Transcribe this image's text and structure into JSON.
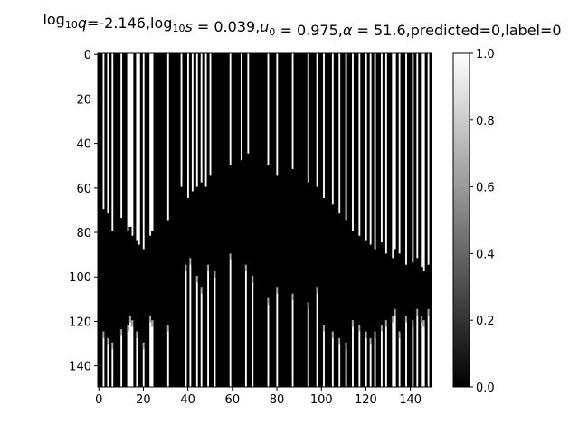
{
  "chart_data": {
    "type": "heatmap",
    "title": {
      "parts": [
        {
          "t": "log"
        },
        {
          "t": "10",
          "sub": true
        },
        {
          "t": "q",
          "italic": true
        },
        {
          "t": "=-2.146,log"
        },
        {
          "t": "10",
          "sub": true
        },
        {
          "t": "s",
          "italic": true
        },
        {
          "t": " = 0.039,"
        },
        {
          "t": "u",
          "italic": true
        },
        {
          "t": "0",
          "sub": true
        },
        {
          "t": " = 0.975,"
        },
        {
          "t": "α",
          "italic": true
        },
        {
          "t": " = 51.6,predicted=0,label=0"
        }
      ]
    },
    "colormap": "gray",
    "value_range": [
      0.0,
      1.0
    ],
    "grid": false,
    "x_axis": {
      "range": [
        0,
        150
      ],
      "ticks": [
        "0",
        "20",
        "40",
        "60",
        "80",
        "100",
        "120",
        "140"
      ]
    },
    "y_axis": {
      "range": [
        0,
        150
      ],
      "inverted": true,
      "ticks": [
        "0",
        "20",
        "40",
        "60",
        "80",
        "100",
        "120",
        "140"
      ]
    },
    "colorbar": {
      "ticks": [
        "0.0",
        "0.2",
        "0.4",
        "0.6",
        "0.8",
        "1.0"
      ]
    },
    "columns": 150,
    "rows": 150,
    "description_of_values": "binary-like 0/1 image: dark band spanning rows ~60-120 across all columns, irregular vertical white streaks above and below",
    "column_profile": {
      "top_dark_start_row": [
        0,
        0,
        70,
        0,
        72,
        0,
        80,
        0,
        0,
        0,
        74,
        0,
        0,
        80,
        78,
        82,
        0,
        84,
        86,
        0,
        88,
        0,
        0,
        82,
        80,
        0,
        0,
        0,
        0,
        0,
        0,
        75,
        0,
        0,
        0,
        0,
        0,
        60,
        0,
        0,
        65,
        0,
        62,
        0,
        60,
        0,
        58,
        0,
        60,
        0,
        55,
        0,
        0,
        0,
        0,
        0,
        0,
        0,
        0,
        50,
        0,
        0,
        0,
        0,
        48,
        0,
        0,
        45,
        0,
        0,
        0,
        0,
        0,
        0,
        0,
        0,
        50,
        0,
        0,
        0,
        55,
        0,
        0,
        0,
        0,
        0,
        0,
        52,
        0,
        0,
        0,
        0,
        0,
        0,
        58,
        0,
        0,
        0,
        60,
        0,
        0,
        65,
        0,
        0,
        0,
        68,
        0,
        0,
        72,
        0,
        0,
        75,
        0,
        0,
        80,
        0,
        0,
        82,
        0,
        0,
        84,
        0,
        86,
        0,
        88,
        0,
        0,
        85,
        0,
        90,
        0,
        0,
        92,
        88,
        0,
        90,
        0,
        0,
        95,
        0,
        0,
        94,
        0,
        92,
        0,
        96,
        98,
        0,
        95,
        0
      ],
      "bottom_dark_end_row": [
        150,
        150,
        125,
        150,
        128,
        150,
        130,
        150,
        150,
        150,
        124,
        150,
        150,
        122,
        118,
        120,
        150,
        125,
        150,
        150,
        130,
        150,
        150,
        118,
        120,
        150,
        150,
        150,
        150,
        150,
        150,
        122,
        150,
        150,
        150,
        150,
        150,
        150,
        150,
        95,
        150,
        92,
        150,
        150,
        100,
        150,
        105,
        150,
        150,
        95,
        150,
        150,
        98,
        150,
        150,
        150,
        150,
        150,
        150,
        90,
        150,
        150,
        150,
        150,
        150,
        150,
        95,
        150,
        150,
        100,
        150,
        150,
        150,
        150,
        150,
        150,
        110,
        150,
        150,
        150,
        105,
        150,
        150,
        150,
        150,
        150,
        150,
        108,
        150,
        150,
        150,
        150,
        150,
        150,
        112,
        150,
        150,
        150,
        105,
        150,
        150,
        122,
        150,
        150,
        150,
        125,
        150,
        150,
        128,
        150,
        150,
        130,
        150,
        150,
        120,
        150,
        150,
        122,
        150,
        150,
        125,
        150,
        128,
        150,
        125,
        150,
        150,
        122,
        150,
        120,
        150,
        150,
        118,
        115,
        150,
        125,
        150,
        150,
        118,
        150,
        150,
        120,
        150,
        115,
        150,
        118,
        120,
        150,
        115,
        150
      ]
    }
  }
}
